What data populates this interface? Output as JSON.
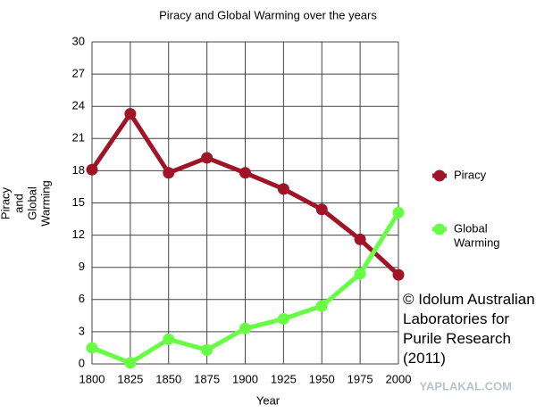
{
  "chart_data": {
    "type": "line",
    "title": "Piracy and Global Warming over the years",
    "x_label": "Year",
    "y_label": [
      "Piracy",
      "and",
      "Global",
      "Warming"
    ],
    "x": [
      1800,
      1825,
      1850,
      1875,
      1900,
      1925,
      1950,
      1975,
      2000
    ],
    "xlim": [
      1800,
      2000
    ],
    "xticks": [
      1800,
      1825,
      1850,
      1875,
      1900,
      1925,
      1950,
      1975,
      2000
    ],
    "ylim": [
      0,
      30
    ],
    "yticks": [
      0,
      3,
      6,
      9,
      12,
      15,
      18,
      21,
      24,
      27,
      30
    ],
    "grid": true,
    "legend": "right",
    "series": [
      {
        "name": "Piracy",
        "color": "#a01428",
        "values": [
          18.1,
          23.3,
          17.8,
          19.2,
          17.8,
          16.3,
          14.4,
          11.6,
          8.3
        ]
      },
      {
        "name": [
          "Global",
          "Warming"
        ],
        "color": "#66ff44",
        "values": [
          1.5,
          0.1,
          2.3,
          1.3,
          3.3,
          4.2,
          5.4,
          8.4,
          14.1
        ]
      }
    ],
    "annotation": [
      "© Idolum Australian",
      "Laboratories for",
      "Purile Research",
      "(2011)"
    ],
    "watermark": "YAPLAKAL.COM"
  }
}
